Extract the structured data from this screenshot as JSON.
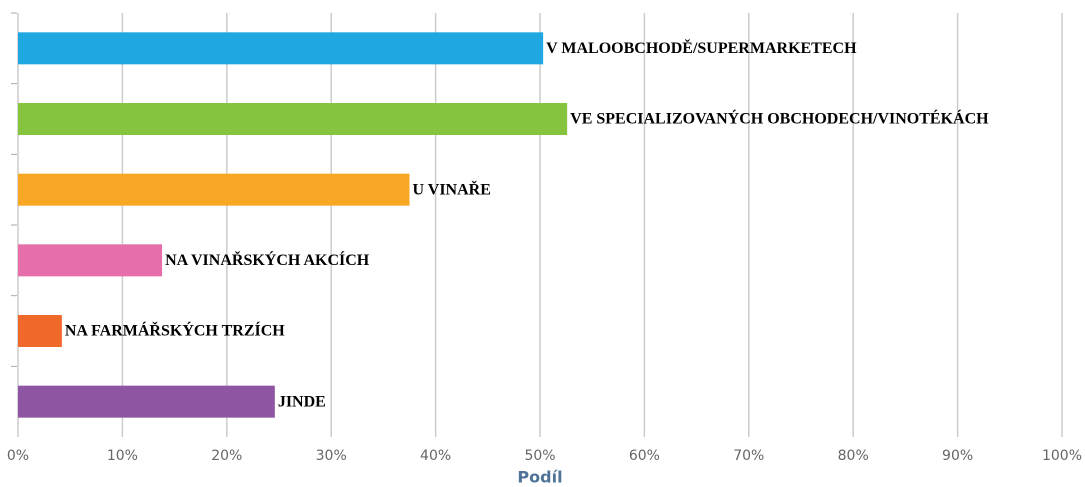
{
  "chart_data": {
    "type": "bar",
    "orientation": "horizontal",
    "x_label": "Podíl",
    "categories": [
      "V MALOOBCHODĚ/SUPERMARKETECH",
      "VE SPECIALIZOVANÝCH OBCHODECH/VINOTÉKÁCH",
      "U VINAŘE",
      "NA VINAŘSKÝCH AKCÍCH",
      "NA FARMÁŘSKÝCH TRZÍCH",
      "JINDE"
    ],
    "values": [
      50.3,
      52.6,
      37.5,
      13.8,
      4.2,
      24.6
    ],
    "colors": [
      "#1ea7e1",
      "#86c440",
      "#f9a825",
      "#e66ea9",
      "#f1692a",
      "#8e55a3"
    ],
    "xlim": [
      0,
      100
    ],
    "xticks": [
      {
        "value": 0,
        "label": "0%"
      },
      {
        "value": 10,
        "label": "10%"
      },
      {
        "value": 20,
        "label": "20%"
      },
      {
        "value": 30,
        "label": "30%"
      },
      {
        "value": 40,
        "label": "40%"
      },
      {
        "value": 50,
        "label": "50%"
      },
      {
        "value": 60,
        "label": "60%"
      },
      {
        "value": 70,
        "label": "70%"
      },
      {
        "value": 80,
        "label": "80%"
      },
      {
        "value": 90,
        "label": "90%"
      },
      {
        "value": 100,
        "label": "100%"
      }
    ],
    "grid": true
  }
}
